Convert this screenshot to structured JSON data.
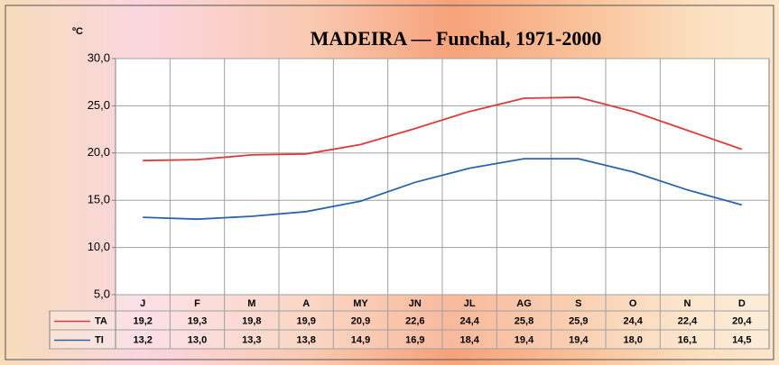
{
  "chart_data": {
    "type": "line",
    "title": "MADEIRA — Funchal, 1971-2000",
    "y_label": "ºC",
    "categories": [
      "J",
      "F",
      "M",
      "A",
      "MY",
      "JN",
      "JL",
      "AG",
      "S",
      "O",
      "N",
      "D"
    ],
    "series": [
      {
        "name": "TA",
        "color": "#e03a3a",
        "values": [
          19.2,
          19.3,
          19.8,
          19.9,
          20.9,
          22.6,
          24.4,
          25.8,
          25.9,
          24.4,
          22.4,
          20.4
        ],
        "value_labels": [
          "19,2",
          "19,3",
          "19,8",
          "19,9",
          "20,9",
          "22,6",
          "24,4",
          "25,8",
          "25,9",
          "24,4",
          "22,4",
          "20,4"
        ]
      },
      {
        "name": "TI",
        "color": "#2a64b0",
        "values": [
          13.2,
          13.0,
          13.3,
          13.8,
          14.9,
          16.9,
          18.4,
          19.4,
          19.4,
          18.0,
          16.1,
          14.5
        ],
        "value_labels": [
          "13,2",
          "13,0",
          "13,3",
          "13,8",
          "14,9",
          "16,9",
          "18,4",
          "19,4",
          "19,4",
          "18,0",
          "16,1",
          "14,5"
        ]
      }
    ],
    "ylim": [
      5,
      30
    ],
    "yticks": [
      {
        "value": 5,
        "label": "5,0"
      },
      {
        "value": 10,
        "label": "10,0"
      },
      {
        "value": 15,
        "label": "15,0"
      },
      {
        "value": 20,
        "label": "20,0"
      },
      {
        "value": 25,
        "label": "25,0"
      },
      {
        "value": 30,
        "label": "30,0"
      }
    ],
    "grid": true
  }
}
